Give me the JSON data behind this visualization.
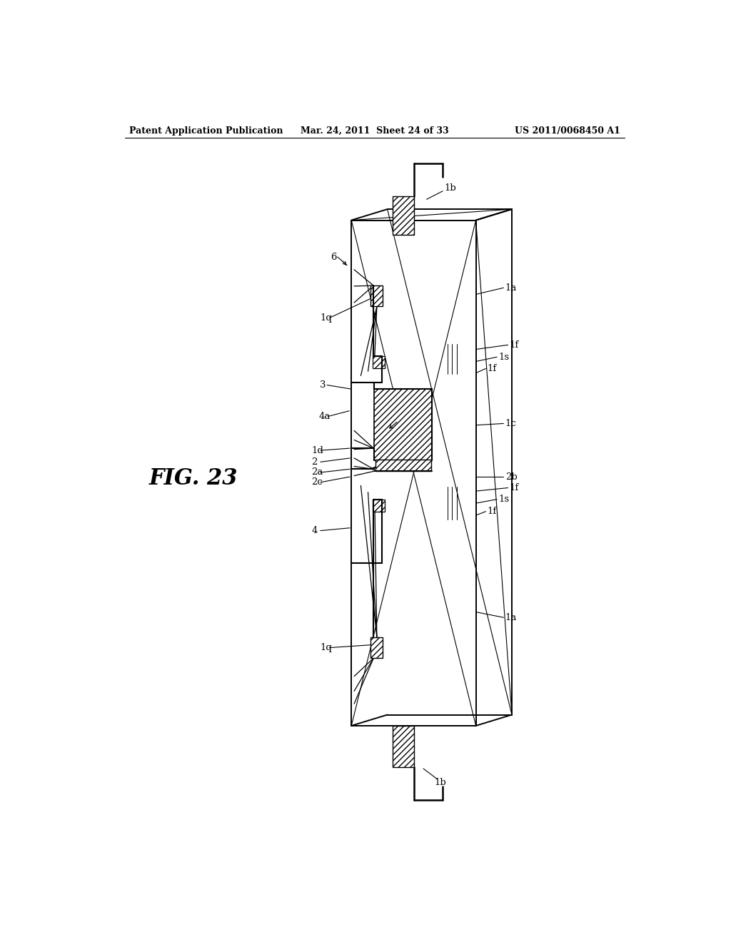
{
  "header_left": "Patent Application Publication",
  "header_mid": "Mar. 24, 2011  Sheet 24 of 33",
  "header_right": "US 2011/0068450 A1",
  "fig_label": "FIG. 23",
  "bg": "#ffffff"
}
